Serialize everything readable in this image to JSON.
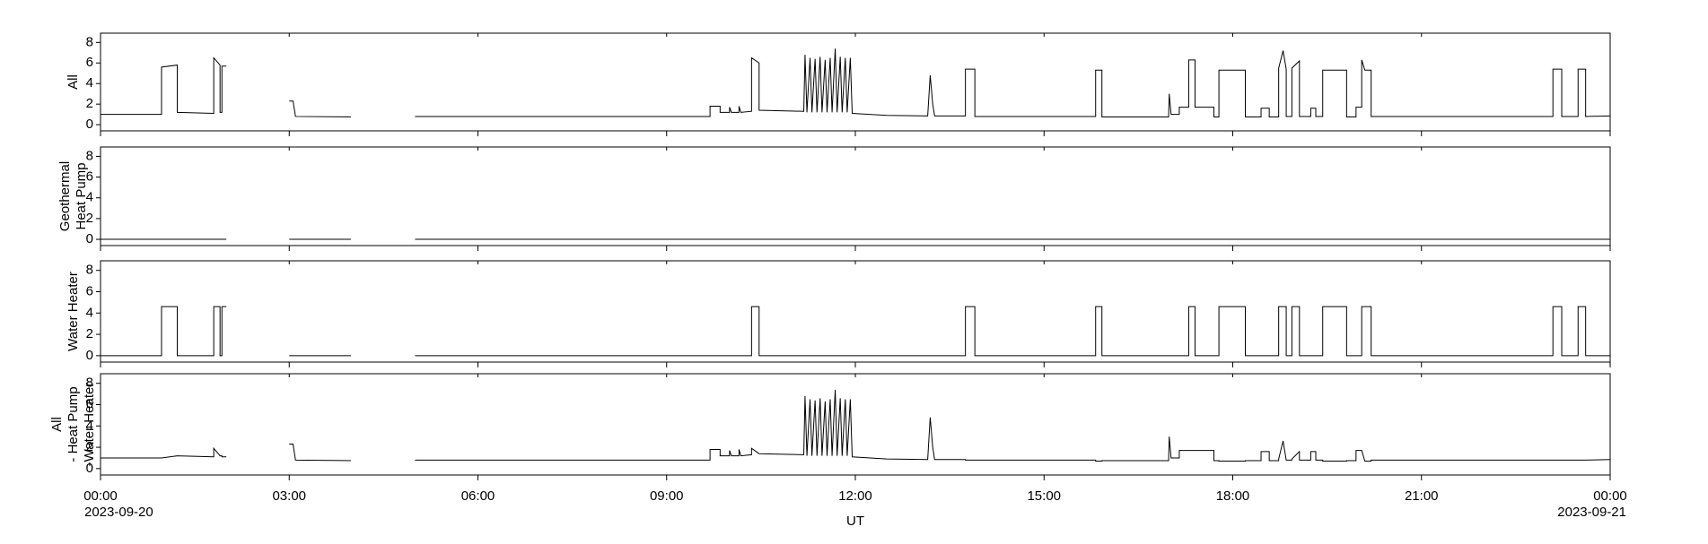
{
  "chart_data": {
    "type": "line",
    "xlabel": "UT",
    "xlim": [
      0,
      24
    ],
    "xticks": [
      {
        "value": 0,
        "label": "00:00"
      },
      {
        "value": 3,
        "label": "03:00"
      },
      {
        "value": 6,
        "label": "06:00"
      },
      {
        "value": 9,
        "label": "09:00"
      },
      {
        "value": 12,
        "label": "12:00"
      },
      {
        "value": 15,
        "label": "15:00"
      },
      {
        "value": 18,
        "label": "18:00"
      },
      {
        "value": 21,
        "label": "21:00"
      },
      {
        "value": 24,
        "label": "00:00"
      }
    ],
    "x_date_labels": [
      {
        "value": 0,
        "label": "2023-09-20"
      },
      {
        "value": 24,
        "label": "2023-09-21"
      }
    ],
    "ylim": [
      -0.6,
      8.9
    ],
    "yticks": [
      0,
      2,
      4,
      6,
      8
    ],
    "color": "#000000",
    "x": [
      0,
      0.97,
      0.97,
      1.22,
      1.22,
      1.8,
      1.8,
      1.9,
      1.9,
      1.93,
      1.93,
      2.0,
      2.5,
      3.0,
      3.06,
      3.1,
      3.98,
      4.5,
      5.0,
      9.69,
      9.69,
      9.85,
      9.85,
      10.0,
      10.0,
      10.03,
      10.15,
      10.15,
      10.18,
      10.35,
      10.35,
      10.47,
      10.47,
      11.18,
      11.2,
      11.23,
      11.28,
      11.31,
      11.36,
      11.39,
      11.44,
      11.47,
      11.52,
      11.55,
      11.6,
      11.63,
      11.68,
      11.71,
      11.76,
      11.79,
      11.84,
      11.87,
      11.92,
      11.95,
      12.5,
      13.15,
      13.19,
      13.23,
      13.26,
      13.75,
      13.75,
      13.9,
      13.9,
      15.82,
      15.82,
      15.92,
      15.92,
      16.98,
      16.99,
      17.02,
      17.15,
      17.15,
      17.3,
      17.3,
      17.4,
      17.4,
      17.7,
      17.7,
      17.78,
      17.78,
      18.2,
      18.2,
      18.45,
      18.45,
      18.58,
      18.58,
      18.73,
      18.73,
      18.8,
      18.85,
      18.85,
      18.94,
      18.94,
      19.06,
      19.06,
      19.24,
      19.24,
      19.32,
      19.32,
      19.43,
      19.43,
      19.81,
      19.81,
      19.96,
      19.96,
      20.05,
      20.05,
      20.1,
      20.2,
      20.2,
      23.09,
      23.09,
      23.23,
      23.23,
      23.49,
      23.49,
      23.61,
      23.61,
      24
    ],
    "series": [
      {
        "ylabel": [
          "All"
        ],
        "values": [
          1.0,
          1.0,
          5.6,
          5.8,
          1.2,
          1.1,
          6.5,
          5.8,
          1.2,
          1.2,
          5.7,
          5.7,
          null,
          2.3,
          2.3,
          0.8,
          0.75,
          null,
          0.8,
          0.8,
          1.8,
          1.8,
          1.2,
          1.2,
          1.7,
          1.2,
          1.2,
          1.8,
          1.2,
          1.3,
          6.5,
          6.0,
          1.4,
          1.3,
          6.8,
          1.2,
          6.5,
          1.2,
          6.4,
          1.2,
          6.6,
          1.2,
          6.3,
          1.2,
          6.5,
          1.2,
          7.4,
          1.2,
          6.6,
          1.2,
          6.5,
          1.2,
          6.5,
          1.1,
          0.9,
          0.85,
          4.8,
          2.0,
          0.85,
          0.85,
          5.4,
          5.4,
          0.8,
          0.8,
          5.3,
          5.3,
          0.75,
          0.75,
          3.0,
          1.0,
          1.0,
          1.7,
          1.7,
          6.3,
          6.3,
          1.7,
          1.7,
          0.75,
          0.75,
          5.3,
          5.3,
          0.75,
          0.75,
          1.6,
          1.6,
          0.75,
          0.75,
          5.5,
          7.2,
          5.4,
          0.8,
          0.8,
          5.5,
          6.2,
          0.8,
          0.8,
          1.6,
          1.6,
          0.8,
          0.8,
          5.3,
          5.3,
          0.75,
          0.75,
          1.7,
          1.7,
          6.3,
          5.3,
          5.3,
          0.8,
          0.8,
          5.4,
          5.4,
          0.8,
          0.8,
          5.4,
          5.4,
          0.8,
          0.85
        ]
      },
      {
        "ylabel": [
          "Geothermal",
          "Heat Pump"
        ],
        "values": [
          0,
          0,
          0,
          0,
          0,
          0,
          0,
          0,
          0,
          0,
          0,
          0,
          null,
          0,
          0,
          0,
          0,
          null,
          0,
          0,
          0,
          0,
          0,
          0,
          0,
          0,
          0,
          0,
          0,
          0,
          0,
          0,
          0,
          0,
          0,
          0,
          0,
          0,
          0,
          0,
          0,
          0,
          0,
          0,
          0,
          0,
          0,
          0,
          0,
          0,
          0,
          0,
          0,
          0,
          0,
          0,
          0,
          0,
          0,
          0,
          0,
          0,
          0,
          0,
          0,
          0,
          0,
          0,
          0,
          0,
          0,
          0,
          0,
          0,
          0,
          0,
          0,
          0,
          0,
          0,
          0,
          0,
          0,
          0,
          0,
          0,
          0,
          0,
          0,
          0,
          0,
          0,
          0,
          0,
          0,
          0,
          0,
          0,
          0,
          0,
          0,
          0,
          0,
          0,
          0,
          0,
          0,
          0,
          0,
          0,
          0,
          0,
          0,
          0,
          0,
          0,
          0,
          0,
          0
        ]
      },
      {
        "ylabel": [
          "Water Heater"
        ],
        "values": [
          0,
          0,
          4.6,
          4.6,
          0,
          0,
          4.6,
          4.6,
          0,
          0,
          4.6,
          4.6,
          null,
          0,
          0,
          0,
          0,
          null,
          0,
          0,
          0,
          0,
          0,
          0,
          0,
          0,
          0,
          0,
          0,
          0,
          4.6,
          4.6,
          0,
          0,
          0,
          0,
          0,
          0,
          0,
          0,
          0,
          0,
          0,
          0,
          0,
          0,
          0,
          0,
          0,
          0,
          0,
          0,
          0,
          0,
          0,
          0,
          0,
          0,
          0,
          0,
          4.6,
          4.6,
          0,
          0,
          4.6,
          4.6,
          0,
          0,
          0,
          0,
          0,
          0,
          0,
          4.6,
          4.6,
          0,
          0,
          0,
          0,
          4.6,
          4.6,
          0,
          0,
          0,
          0,
          0,
          0,
          4.6,
          4.6,
          4.6,
          0,
          0,
          4.6,
          4.6,
          0,
          0,
          0,
          0,
          0,
          0,
          4.6,
          4.6,
          0,
          0,
          0,
          0,
          4.6,
          4.6,
          4.6,
          0,
          0,
          4.6,
          4.6,
          0,
          0,
          4.6,
          4.6,
          0,
          0
        ]
      },
      {
        "ylabel": [
          "All",
          "- Heat Pump",
          "-Water Heater"
        ],
        "values": [
          1.0,
          1.0,
          1.0,
          1.2,
          1.2,
          1.1,
          1.9,
          1.2,
          1.2,
          1.2,
          1.1,
          1.1,
          null,
          2.3,
          2.3,
          0.8,
          0.75,
          null,
          0.8,
          0.8,
          1.8,
          1.8,
          1.2,
          1.2,
          1.7,
          1.2,
          1.2,
          1.8,
          1.2,
          1.3,
          1.9,
          1.4,
          1.4,
          1.3,
          6.8,
          1.2,
          6.5,
          1.2,
          6.4,
          1.2,
          6.6,
          1.2,
          6.3,
          1.2,
          6.5,
          1.2,
          7.4,
          1.2,
          6.6,
          1.2,
          6.5,
          1.2,
          6.5,
          1.1,
          0.9,
          0.85,
          4.8,
          2.0,
          0.85,
          0.85,
          0.8,
          0.8,
          0.8,
          0.8,
          0.7,
          0.7,
          0.75,
          0.75,
          3.0,
          1.0,
          1.0,
          1.7,
          1.7,
          1.7,
          1.7,
          1.7,
          1.7,
          0.75,
          0.75,
          0.7,
          0.7,
          0.75,
          0.75,
          1.6,
          1.6,
          0.75,
          0.75,
          0.9,
          2.6,
          0.8,
          0.8,
          0.8,
          0.9,
          1.6,
          0.8,
          0.8,
          1.6,
          1.6,
          0.8,
          0.8,
          0.7,
          0.7,
          0.75,
          0.75,
          1.7,
          1.7,
          1.7,
          0.7,
          0.7,
          0.8,
          0.8,
          0.8,
          0.8,
          0.8,
          0.8,
          0.8,
          0.8,
          0.8,
          0.85
        ]
      }
    ]
  }
}
